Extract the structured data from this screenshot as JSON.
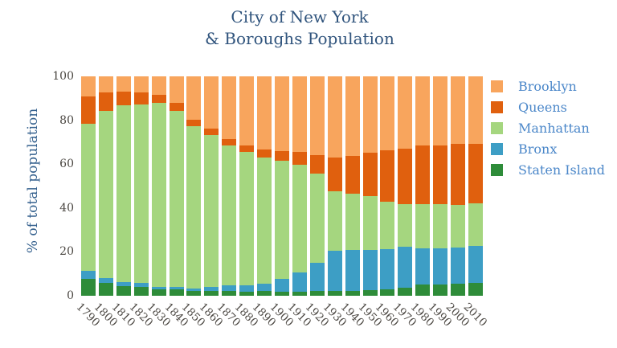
{
  "title": {
    "line1": "City of New York",
    "line2": "& Boroughs Population"
  },
  "colors": {
    "title_text": "#30547d",
    "axis_label_text": "#35618e",
    "tick_text": "#4b4742",
    "legend_text": "#4b87c9",
    "background": "#ffffff"
  },
  "chart_data": {
    "type": "bar",
    "stacked": true,
    "title": "City of New York & Boroughs Population",
    "xlabel": "",
    "ylabel": "% of total population",
    "ylim": [
      0,
      100
    ],
    "yticks": [
      0,
      20,
      40,
      60,
      80,
      100
    ],
    "grid": false,
    "legend_position": "right",
    "legend_order_top_to_bottom": [
      "Brooklyn",
      "Queens",
      "Manhattan",
      "Bronx",
      "Staten Island"
    ],
    "stack_order_bottom_to_top": [
      "Staten Island",
      "Bronx",
      "Manhattan",
      "Queens",
      "Brooklyn"
    ],
    "categories": [
      "1790",
      "1800",
      "1810",
      "1820",
      "1830",
      "1840",
      "1850",
      "1860",
      "1870",
      "1880",
      "1890",
      "1900",
      "1910",
      "1920",
      "1930",
      "1940",
      "1950",
      "1960",
      "1970",
      "1980",
      "1990",
      "2000",
      "2010"
    ],
    "series": [
      {
        "name": "Brooklyn",
        "color": "#f8a55d",
        "values": [
          9.1,
          7.2,
          6.9,
          7.4,
          8.5,
          12.2,
          19.9,
          23.8,
          28.4,
          31.4,
          33.4,
          33.9,
          34.3,
          35.9,
          36.9,
          36.2,
          34.7,
          33.8,
          33.0,
          31.5,
          31.4,
          30.8,
          30.6
        ]
      },
      {
        "name": "Queens",
        "color": "#e0600e",
        "values": [
          12.5,
          8.4,
          6.2,
          5.4,
          3.7,
          3.7,
          2.7,
          2.8,
          3.1,
          3.0,
          3.5,
          4.5,
          6.0,
          8.3,
          15.6,
          17.4,
          19.7,
          23.3,
          25.2,
          26.7,
          26.7,
          27.8,
          27.3
        ]
      },
      {
        "name": "Manhattan",
        "color": "#a5d67f",
        "values": [
          67.1,
          76.4,
          80.5,
          81.4,
          83.6,
          80.0,
          74.1,
          69.3,
          63.8,
          60.9,
          57.5,
          53.8,
          48.9,
          40.6,
          26.9,
          25.4,
          24.8,
          21.8,
          19.5,
          20.2,
          20.3,
          19.2,
          19.4
        ]
      },
      {
        "name": "Bronx",
        "color": "#3d9ec5",
        "values": [
          3.6,
          2.2,
          1.9,
          1.8,
          1.2,
          1.4,
          1.2,
          2.0,
          2.5,
          2.7,
          3.5,
          5.8,
          9.0,
          13.0,
          18.3,
          18.7,
          18.4,
          18.3,
          18.6,
          16.5,
          16.4,
          16.6,
          16.9
        ]
      },
      {
        "name": "Staten Island",
        "color": "#2e8c39",
        "values": [
          7.7,
          5.8,
          4.5,
          4.0,
          2.9,
          2.8,
          2.2,
          2.2,
          2.2,
          2.0,
          2.1,
          1.9,
          1.8,
          2.1,
          2.3,
          2.3,
          2.4,
          2.9,
          3.7,
          5.0,
          5.2,
          5.5,
          5.7
        ]
      }
    ]
  }
}
